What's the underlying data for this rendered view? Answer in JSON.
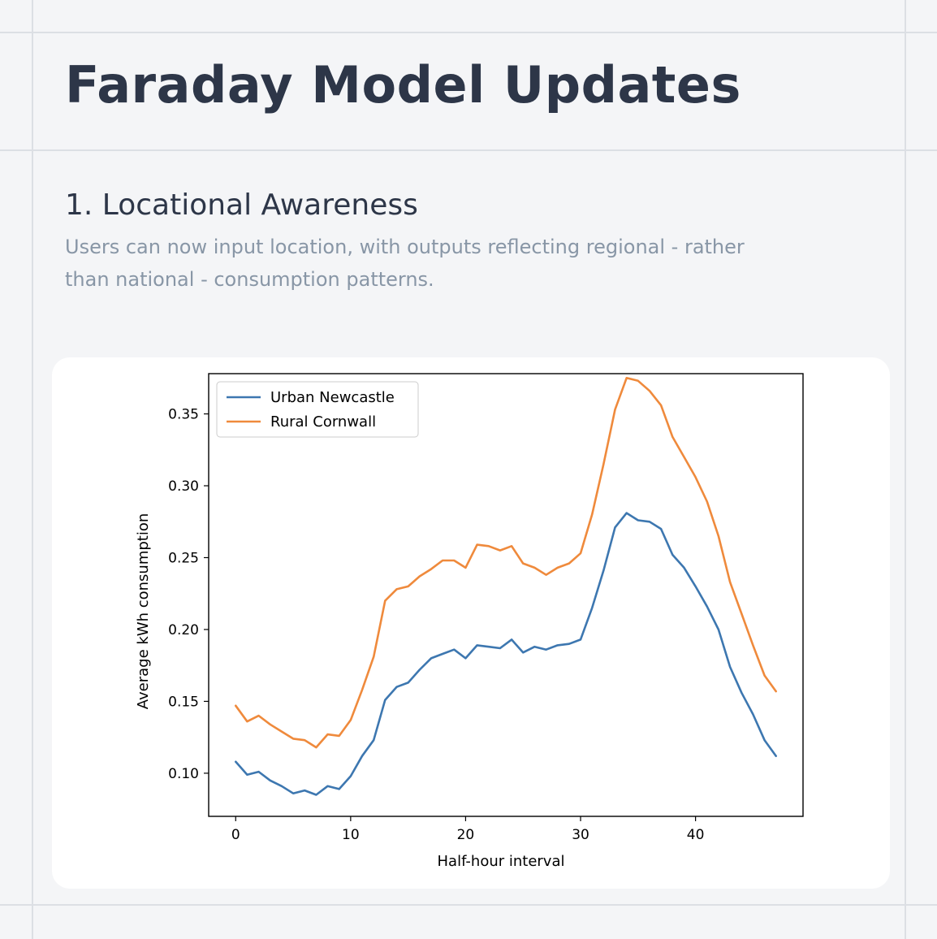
{
  "page": {
    "title": "Faraday Model Updates"
  },
  "section": {
    "title": "1. Locational Awareness",
    "description": "Users can now input location, with outputs reflecting regional - rather than national - consumption patterns."
  },
  "chart_data": {
    "type": "line",
    "xlabel": "Half-hour interval",
    "ylabel": "Average kWh consumption",
    "xlim": [
      -2.35,
      49.35
    ],
    "ylim": [
      0.07,
      0.378
    ],
    "xticks": [
      0,
      10,
      20,
      30,
      40
    ],
    "yticks": [
      0.1,
      0.15,
      0.2,
      0.25,
      0.3,
      0.35
    ],
    "grid": false,
    "legend_position": "top-left",
    "x": [
      0,
      1,
      2,
      3,
      4,
      5,
      6,
      7,
      8,
      9,
      10,
      11,
      12,
      13,
      14,
      15,
      16,
      17,
      18,
      19,
      20,
      21,
      22,
      23,
      24,
      25,
      26,
      27,
      28,
      29,
      30,
      31,
      32,
      33,
      34,
      35,
      36,
      37,
      38,
      39,
      40,
      41,
      42,
      43,
      44,
      45,
      46,
      47
    ],
    "series": [
      {
        "name": "Urban Newcastle",
        "color": "#3d77b0",
        "values": [
          0.108,
          0.099,
          0.101,
          0.095,
          0.091,
          0.086,
          0.088,
          0.085,
          0.091,
          0.089,
          0.098,
          0.112,
          0.123,
          0.151,
          0.16,
          0.163,
          0.172,
          0.18,
          0.183,
          0.186,
          0.18,
          0.189,
          0.188,
          0.187,
          0.193,
          0.184,
          0.188,
          0.186,
          0.189,
          0.19,
          0.193,
          0.215,
          0.241,
          0.271,
          0.281,
          0.276,
          0.275,
          0.27,
          0.252,
          0.243,
          0.23,
          0.216,
          0.2,
          0.174,
          0.156,
          0.141,
          0.123,
          0.112
        ]
      },
      {
        "name": "Rural Cornwall",
        "color": "#ef8a3c",
        "values": [
          0.147,
          0.136,
          0.14,
          0.134,
          0.129,
          0.124,
          0.123,
          0.118,
          0.127,
          0.126,
          0.137,
          0.158,
          0.181,
          0.22,
          0.228,
          0.23,
          0.237,
          0.242,
          0.248,
          0.248,
          0.243,
          0.259,
          0.258,
          0.255,
          0.258,
          0.246,
          0.243,
          0.238,
          0.243,
          0.246,
          0.253,
          0.28,
          0.315,
          0.353,
          0.375,
          0.373,
          0.366,
          0.356,
          0.334,
          0.32,
          0.306,
          0.289,
          0.265,
          0.233,
          0.211,
          0.189,
          0.168,
          0.157
        ]
      }
    ]
  }
}
